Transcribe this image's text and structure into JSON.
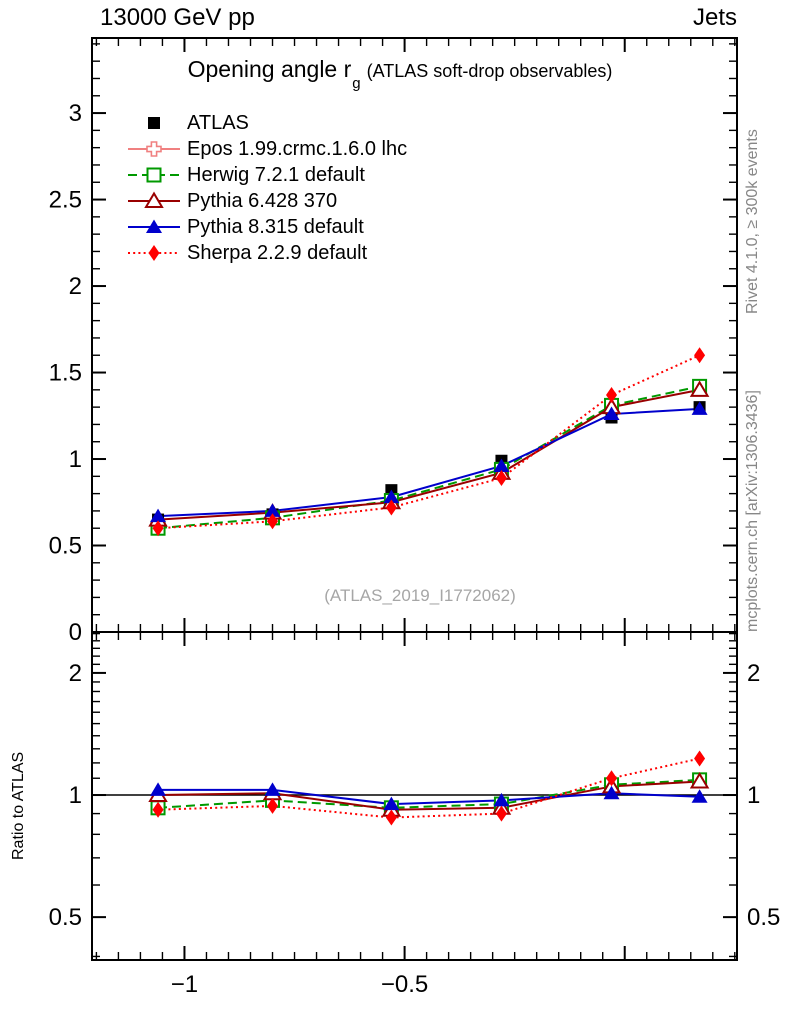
{
  "header": {
    "left_label": "13000 GeV pp",
    "right_label": "Jets"
  },
  "title": {
    "text": "Opening angle r",
    "subscript": "g",
    "annotation": "(ATLAS soft-drop observables)"
  },
  "watermark": "(ATLAS_2019_I1772062)",
  "sidebar": {
    "top_text": "Rivet 4.1.0, ≥ 300k events",
    "bottom_text": "mcplots.cern.ch [arXiv:1306.3436]"
  },
  "ratio_axis_label": "Ratio to ATLAS",
  "colors": {
    "atlas": "#000000",
    "epos": "#f08080",
    "herwig": "#009900",
    "pythia6": "#990000",
    "pythia8": "#0000cc",
    "sherpa": "#ff0000",
    "frame": "#000000",
    "muted_text": "#878787",
    "watermark_text": "#a6a6a6"
  },
  "chart_data": {
    "type": "line",
    "x": [
      -1.06,
      -0.8,
      -0.53,
      -0.28,
      -0.03,
      0.17
    ],
    "xlim": [
      -1.21,
      0.255
    ],
    "xticks": [
      {
        "v": -1,
        "label": "−1"
      },
      {
        "v": -0.5,
        "label": "−0.5"
      },
      {
        "v": 0,
        "label": ""
      }
    ],
    "x_minor_step": 0.05,
    "main_panel": {
      "ylim": [
        0,
        3.434
      ],
      "y_minor_step": 0.1,
      "yticks": [
        {
          "v": 0,
          "label": "0"
        },
        {
          "v": 0.5,
          "label": "0.5"
        },
        {
          "v": 1,
          "label": "1"
        },
        {
          "v": 1.5,
          "label": "1.5"
        },
        {
          "v": 2,
          "label": "2"
        },
        {
          "v": 2.5,
          "label": "2.5"
        },
        {
          "v": 3,
          "label": "3"
        }
      ],
      "series": [
        {
          "id": "atlas",
          "label": "ATLAS",
          "color": "#000000",
          "line": "none",
          "marker": "square-filled",
          "values": [
            0.65,
            0.68,
            0.82,
            0.99,
            1.24,
            1.3
          ]
        },
        {
          "id": "epos",
          "label": "Epos 1.99.crmc.1.6.0 lhc",
          "color": "#f08080",
          "line": "solid",
          "marker": "plus-open",
          "values": []
        },
        {
          "id": "herwig",
          "label": "Herwig 7.2.1 default",
          "color": "#009900",
          "line": "dashed",
          "marker": "square-open",
          "values": [
            0.6,
            0.66,
            0.76,
            0.94,
            1.31,
            1.42
          ]
        },
        {
          "id": "pythia6",
          "label": "Pythia 6.428 370",
          "color": "#990000",
          "line": "solid",
          "marker": "triangle-open",
          "values": [
            0.65,
            0.69,
            0.75,
            0.92,
            1.3,
            1.4
          ]
        },
        {
          "id": "pythia8",
          "label": "Pythia 8.315 default",
          "color": "#0000cc",
          "line": "solid",
          "marker": "triangle-filled",
          "values": [
            0.67,
            0.7,
            0.78,
            0.96,
            1.26,
            1.29
          ]
        },
        {
          "id": "sherpa",
          "label": "Sherpa 2.2.9 default",
          "color": "#ff0000",
          "line": "dotted",
          "marker": "diamond-filled",
          "values": [
            0.6,
            0.64,
            0.72,
            0.89,
            1.37,
            1.6
          ]
        }
      ]
    },
    "ratio_panel": {
      "scale": "log",
      "ylim": [
        0.392,
        2.523
      ],
      "reference_line": 1,
      "yticks": [
        {
          "v": 0.5,
          "label": "0.5"
        },
        {
          "v": 1,
          "label": "1"
        },
        {
          "v": 2,
          "label": "2"
        }
      ],
      "series": [
        {
          "id": "herwig",
          "values": [
            0.93,
            0.97,
            0.93,
            0.95,
            1.06,
            1.09
          ]
        },
        {
          "id": "pythia6",
          "values": [
            1.0,
            1.01,
            0.92,
            0.93,
            1.05,
            1.08
          ]
        },
        {
          "id": "pythia8",
          "values": [
            1.03,
            1.03,
            0.95,
            0.97,
            1.01,
            0.99
          ]
        },
        {
          "id": "sherpa",
          "values": [
            0.92,
            0.94,
            0.88,
            0.9,
            1.1,
            1.23
          ]
        }
      ]
    }
  }
}
